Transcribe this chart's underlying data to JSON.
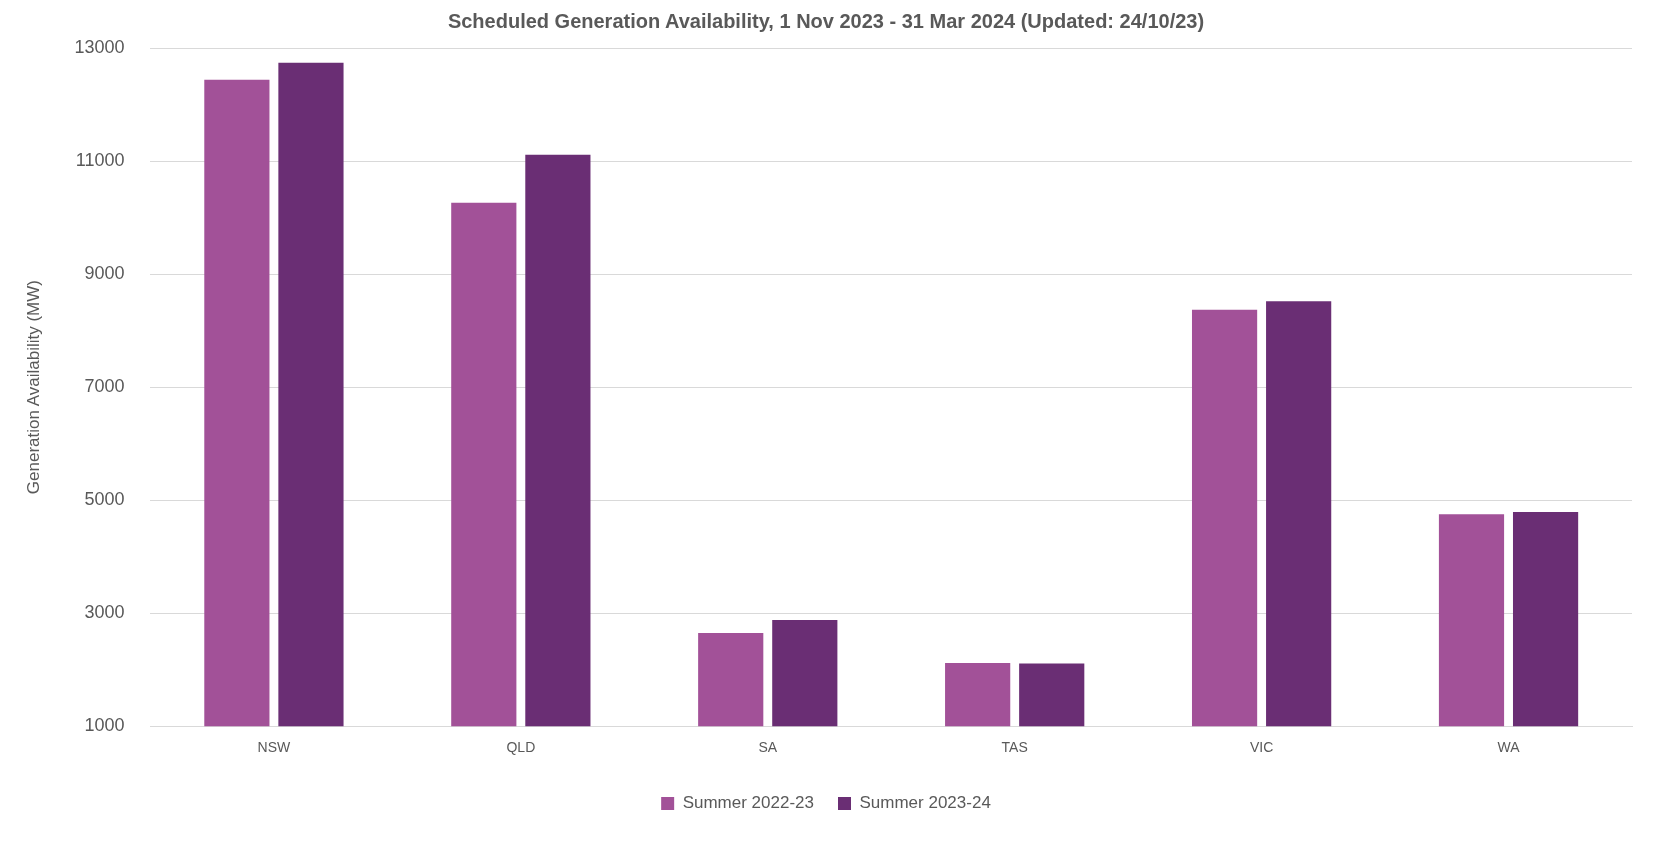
{
  "chart_data": {
    "type": "bar",
    "title": "Scheduled Generation Availability, 1 Nov 2023 - 31 Mar 2024 (Updated: 24/10/23)",
    "ylabel": "Generation Availability (MW)",
    "categories": [
      "NSW",
      "QLD",
      "SA",
      "TAS",
      "VIC",
      "WA"
    ],
    "series": [
      {
        "name": "Summer 2022-23",
        "color": "#a25198",
        "values": [
          12440,
          10260,
          2650,
          2120,
          8370,
          4750
        ]
      },
      {
        "name": "Summer 2023-24",
        "color": "#6a2e74",
        "values": [
          12740,
          11110,
          2880,
          2110,
          8520,
          4790
        ]
      }
    ],
    "ylim": [
      1000,
      13000
    ],
    "yticks": [
      1000,
      3000,
      5000,
      7000,
      9000,
      11000,
      13000
    ],
    "grid": "y",
    "legend": "bottom"
  }
}
